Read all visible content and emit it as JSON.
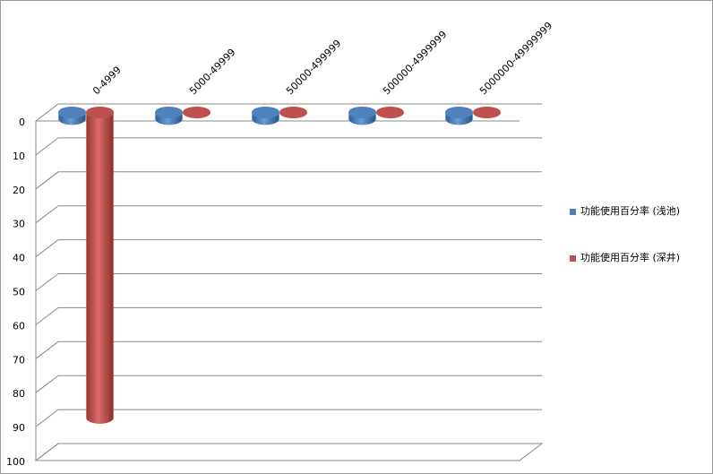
{
  "chart_data": {
    "type": "bar3d-cylinder",
    "categories": [
      "0-4999",
      "5000-49999",
      "50000-499999",
      "500000-4999999",
      "5000000-49999999"
    ],
    "series": [
      {
        "name": "功能使用百分率 (浅池)",
        "color": "#4f81bd",
        "values": [
          2,
          2,
          2,
          2,
          2
        ]
      },
      {
        "name": "功能使用百分率 (深井)",
        "color": "#c0504d",
        "values": [
          90,
          0,
          0,
          0,
          0
        ]
      }
    ],
    "ylim": [
      0,
      100
    ],
    "y_inverted": true,
    "yticks": [
      0,
      10,
      20,
      30,
      40,
      50,
      60,
      70,
      80,
      90,
      100
    ],
    "grid": true,
    "legend": "right"
  }
}
